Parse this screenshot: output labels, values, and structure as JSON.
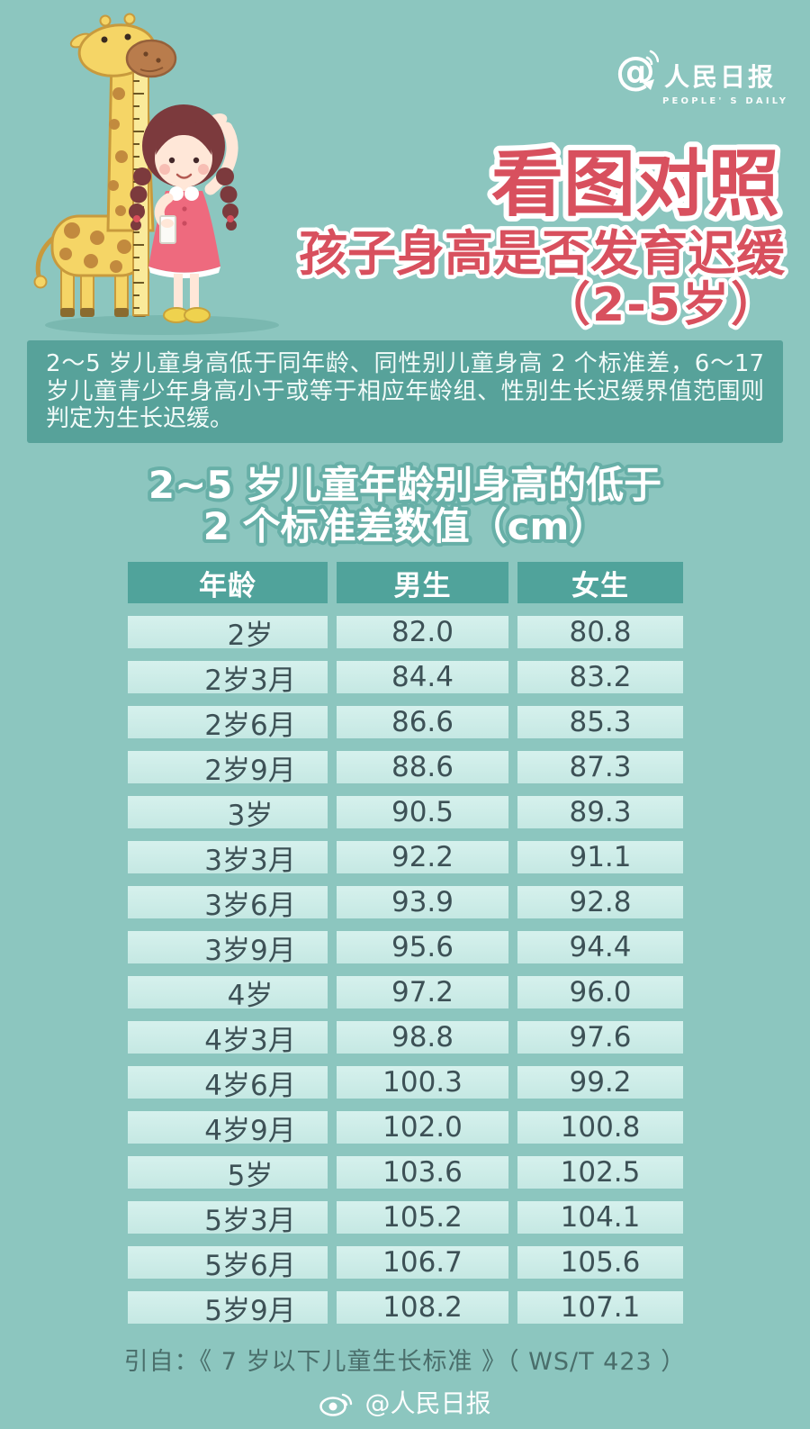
{
  "branding": {
    "logo_cn": "人民日报",
    "logo_en": "PEOPLE' S DAILY"
  },
  "header": {
    "title_line1": "看图对照",
    "title_line2": "孩子身高是否发育迟缓",
    "title_line3": "（2-5岁）"
  },
  "intro": {
    "text": "2～5 岁儿童身高低于同年龄、同性别儿童身高 2 个标准差，6～17 岁儿童青少年身高小于或等于相应年龄组、性别生长迟缓界值范围则判定为生长迟缓。"
  },
  "table": {
    "title_line1": "2~5 岁儿童年龄别身高的低于",
    "title_line2": "2 个标准差数值（cm）",
    "headers": [
      "年龄",
      "男生",
      "女生"
    ],
    "rows": [
      [
        "2岁",
        "82.0",
        "80.8"
      ],
      [
        "2岁3月",
        "84.4",
        "83.2"
      ],
      [
        "2岁6月",
        "86.6",
        "85.3"
      ],
      [
        "2岁9月",
        "88.6",
        "87.3"
      ],
      [
        "3岁",
        "90.5",
        "89.3"
      ],
      [
        "3岁3月",
        "92.2",
        "91.1"
      ],
      [
        "3岁6月",
        "93.9",
        "92.8"
      ],
      [
        "3岁9月",
        "95.6",
        "94.4"
      ],
      [
        "4岁",
        "97.2",
        "96.0"
      ],
      [
        "4岁3月",
        "98.8",
        "97.6"
      ],
      [
        "4岁6月",
        "100.3",
        "99.2"
      ],
      [
        "4岁9月",
        "102.0",
        "100.8"
      ],
      [
        "5岁",
        "103.6",
        "102.5"
      ],
      [
        "5岁3月",
        "105.2",
        "104.1"
      ],
      [
        "5岁6月",
        "106.7",
        "105.6"
      ],
      [
        "5岁9月",
        "108.2",
        "107.1"
      ]
    ]
  },
  "citation": {
    "text": "引自：《 7 岁以下儿童生长标准 》（ WS/T 423 ）"
  },
  "footer": {
    "weibo_handle": "@人民日报"
  },
  "colors": {
    "background": "#8cc6bf",
    "intro_bg": "#57a29a",
    "table_header_bg": "#50a39b",
    "table_row_bg": "#c9eae6",
    "title_red": "#d8505e",
    "table_title_outline": "#67afa7",
    "footer_text": "#fdfefe"
  }
}
